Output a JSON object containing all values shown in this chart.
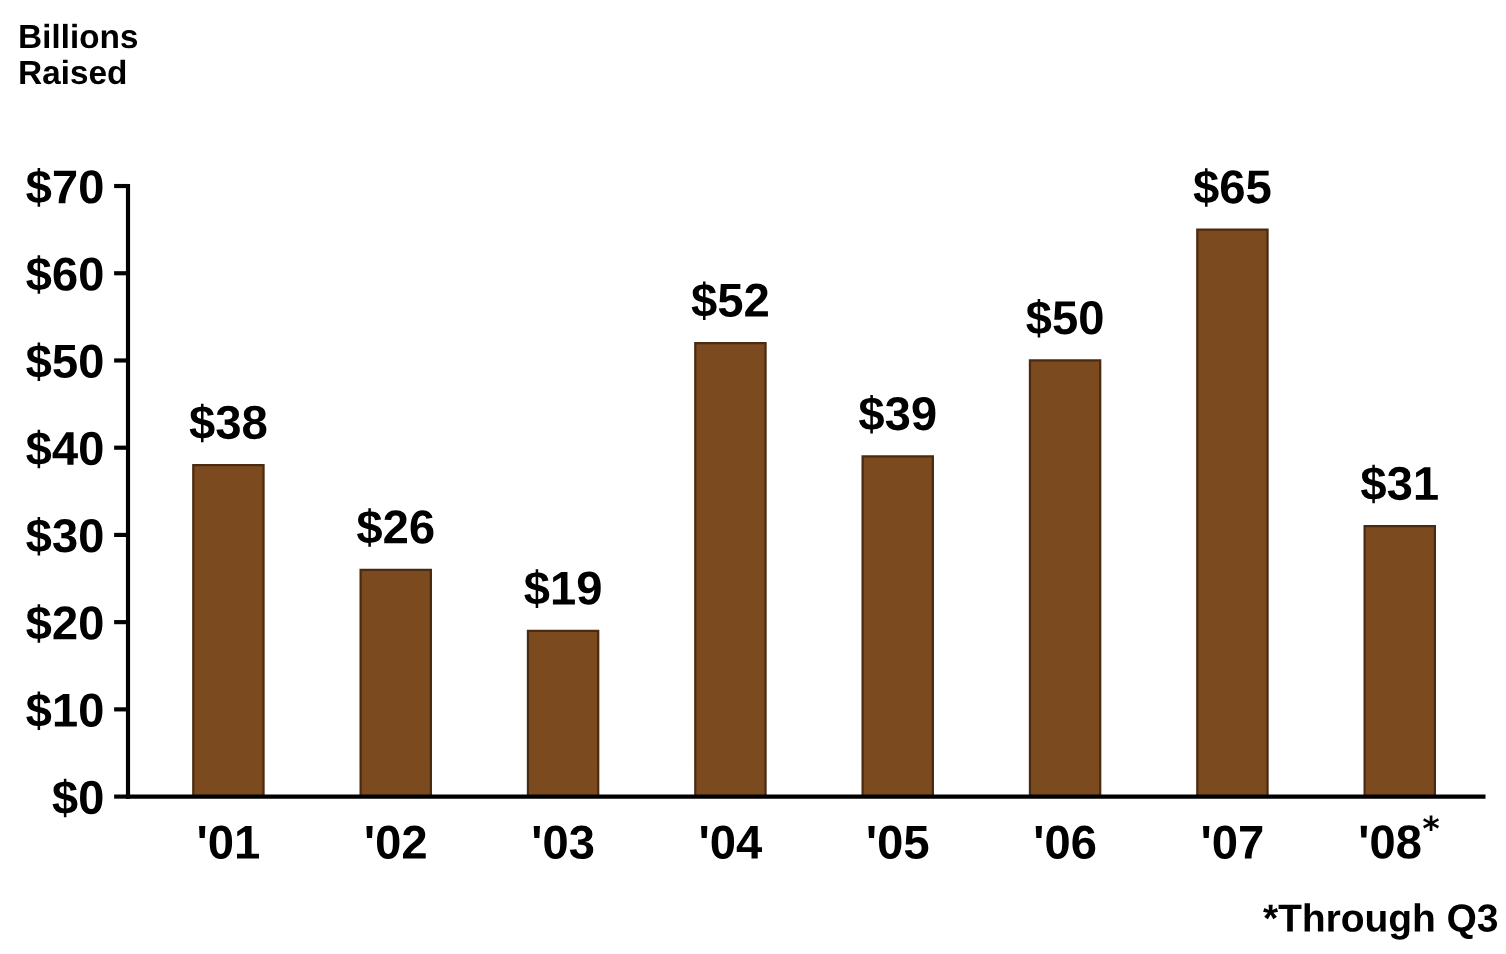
{
  "chart_data": {
    "type": "bar",
    "ylabel": "Billions\nRaised",
    "categories": [
      "'01",
      "'02",
      "'03",
      "'04",
      "'05",
      "'06",
      "'07",
      "'08$^{*}$"
    ],
    "values": [
      38,
      26,
      19,
      52,
      39,
      50,
      65,
      31
    ],
    "value_labels": [
      "$38",
      "$26",
      "$19",
      "$52",
      "$39",
      "$50",
      "$65",
      "$31"
    ],
    "color": "#7b4a1e",
    "ylim": [
      0,
      70
    ],
    "yticks": [
      {
        "value": 0,
        "label": "$0"
      },
      {
        "value": 10,
        "label": "$10"
      },
      {
        "value": 20,
        "label": "$20"
      },
      {
        "value": 30,
        "label": "$30"
      },
      {
        "value": 40,
        "label": "$40"
      },
      {
        "value": 50,
        "label": "$50"
      },
      {
        "value": 60,
        "label": "$60"
      },
      {
        "value": 70,
        "label": "$70"
      }
    ],
    "grid": false,
    "annotations": [
      "*Through Q3"
    ]
  }
}
